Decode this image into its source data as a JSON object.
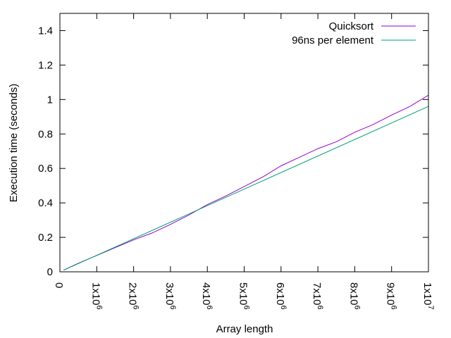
{
  "chart_data": {
    "type": "line",
    "title": "",
    "xlabel": "Array length",
    "ylabel": "Execution time (seconds)",
    "xlim": [
      0,
      10000000
    ],
    "ylim": [
      0,
      1.5
    ],
    "grid": false,
    "legend_position": "top-right",
    "x_ticks": [
      {
        "value": 0,
        "base": "0",
        "exp": ""
      },
      {
        "value": 1000000,
        "base": "1x10",
        "exp": "6"
      },
      {
        "value": 2000000,
        "base": "2x10",
        "exp": "6"
      },
      {
        "value": 3000000,
        "base": "3x10",
        "exp": "6"
      },
      {
        "value": 4000000,
        "base": "4x10",
        "exp": "6"
      },
      {
        "value": 5000000,
        "base": "5x10",
        "exp": "6"
      },
      {
        "value": 6000000,
        "base": "6x10",
        "exp": "6"
      },
      {
        "value": 7000000,
        "base": "7x10",
        "exp": "6"
      },
      {
        "value": 8000000,
        "base": "8x10",
        "exp": "6"
      },
      {
        "value": 9000000,
        "base": "9x10",
        "exp": "6"
      },
      {
        "value": 10000000,
        "base": "1x10",
        "exp": "7"
      }
    ],
    "y_ticks": [
      {
        "value": 0,
        "label": "0"
      },
      {
        "value": 0.2,
        "label": "0.2"
      },
      {
        "value": 0.4,
        "label": "0.4"
      },
      {
        "value": 0.6,
        "label": "0.6"
      },
      {
        "value": 0.8,
        "label": "0.8"
      },
      {
        "value": 1.0,
        "label": "1"
      },
      {
        "value": 1.2,
        "label": "1.2"
      },
      {
        "value": 1.4,
        "label": "1.4"
      }
    ],
    "series": [
      {
        "name": "Quicksort",
        "color": "#9400d3",
        "x": [
          100000,
          500000,
          1000000,
          1500000,
          2000000,
          2500000,
          3000000,
          3500000,
          4000000,
          4500000,
          5000000,
          5500000,
          6000000,
          6500000,
          7000000,
          7500000,
          8000000,
          8500000,
          9000000,
          9500000,
          10000000
        ],
        "y": [
          0.01,
          0.05,
          0.095,
          0.14,
          0.185,
          0.225,
          0.275,
          0.33,
          0.39,
          0.44,
          0.495,
          0.55,
          0.615,
          0.665,
          0.715,
          0.755,
          0.81,
          0.855,
          0.91,
          0.96,
          1.025
        ]
      },
      {
        "name": "96ns per element",
        "color": "#009e73",
        "x": [
          100000,
          10000000
        ],
        "y": [
          0.0096,
          0.96
        ]
      }
    ]
  }
}
